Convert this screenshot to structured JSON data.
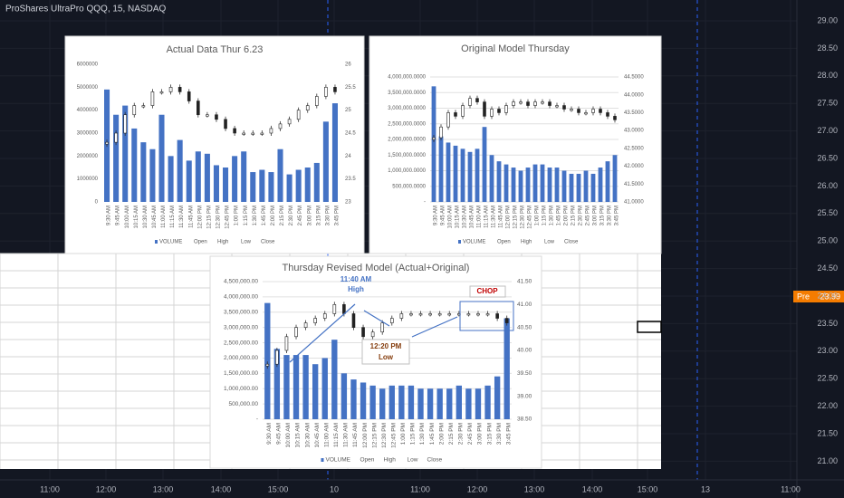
{
  "header": {
    "title": "ProShares UltraPro QQQ, 15, NASDAQ"
  },
  "price_axis": {
    "ticks": [
      "29.00",
      "28.50",
      "28.00",
      "27.50",
      "27.00",
      "26.50",
      "26.00",
      "25.50",
      "25.00",
      "24.50",
      "24.00",
      "23.50",
      "23.00",
      "22.50",
      "22.00",
      "21.50",
      "21.00"
    ],
    "marker_tag": "Pre",
    "marker_price": "23.99"
  },
  "time_axis": {
    "labels": [
      "11:00",
      "12:00",
      "13:00",
      "14:00",
      "15:00",
      "10",
      "11:00",
      "12:00",
      "13:00",
      "14:00",
      "15:00",
      "13",
      "11:00"
    ]
  },
  "charts": [
    {
      "title": "Actual Data Thur 6.23",
      "categories": [
        "9:30 AM",
        "9:45 AM",
        "10:00 AM",
        "10:15 AM",
        "10:30 AM",
        "10:45 AM",
        "11:00 AM",
        "11:15 AM",
        "11:30 AM",
        "11:45 AM",
        "12:00 PM",
        "12:15 PM",
        "12:30 PM",
        "12:45 PM",
        "1:00 PM",
        "1:15 PM",
        "1:30 PM",
        "1:45 PM",
        "2:00 PM",
        "2:15 PM",
        "2:30 PM",
        "2:45 PM",
        "3:00 PM",
        "3:15 PM",
        "3:30 PM",
        "3:45 PM"
      ],
      "volume": [
        4900000,
        3800000,
        4200000,
        3200000,
        2600000,
        2300000,
        3800000,
        2000000,
        2700000,
        1800000,
        2200000,
        2100000,
        1600000,
        1500000,
        2000000,
        2200000,
        1300000,
        1400000,
        1300000,
        2300000,
        1200000,
        1400000,
        1500000,
        1700000,
        3500000,
        4300000
      ],
      "close": [
        24.3,
        24.5,
        24.9,
        25.1,
        25.1,
        25.4,
        25.4,
        25.5,
        25.4,
        25.2,
        24.9,
        24.9,
        24.8,
        24.6,
        24.5,
        24.5,
        24.5,
        24.5,
        24.6,
        24.7,
        24.8,
        25.0,
        25.1,
        25.3,
        25.5,
        25.4
      ],
      "ylim": [
        0,
        6000000
      ],
      "yticks": [
        6000000,
        5000000,
        4000000,
        3000000,
        2000000,
        1000000,
        0
      ],
      "y2lim": [
        23,
        26
      ],
      "y2ticks": [
        26,
        25.5,
        25,
        24.5,
        24,
        23.5,
        23
      ],
      "legend": [
        "VOLUME",
        "Open",
        "High",
        "Low",
        "Close"
      ],
      "color": "#4472c4"
    },
    {
      "title": "Original Model Thursday",
      "categories": [
        "9:30 AM",
        "9:45 AM",
        "10:00 AM",
        "10:15 AM",
        "10:30 AM",
        "10:45 AM",
        "11:00 AM",
        "11:15 AM",
        "11:30 AM",
        "11:45 AM",
        "12:00 PM",
        "12:15 PM",
        "12:30 PM",
        "12:45 PM",
        "1:00 PM",
        "1:15 PM",
        "1:30 PM",
        "1:45 PM",
        "2:00 PM",
        "2:15 PM",
        "2:30 PM",
        "2:45 PM",
        "3:00 PM",
        "3:15 PM",
        "3:30 PM",
        "3:45 PM"
      ],
      "volume": [
        3700000,
        2100000,
        1900000,
        1800000,
        1700000,
        1600000,
        1700000,
        2400000,
        1500000,
        1300000,
        1200000,
        1100000,
        1000000,
        1100000,
        1200000,
        1200000,
        1100000,
        1100000,
        1000000,
        900000,
        900000,
        1000000,
        900000,
        1100000,
        1300000,
        1500000
      ],
      "close": [
        42.8,
        43.1,
        43.5,
        43.4,
        43.7,
        43.9,
        43.8,
        43.4,
        43.6,
        43.5,
        43.7,
        43.8,
        43.8,
        43.7,
        43.8,
        43.8,
        43.7,
        43.7,
        43.6,
        43.6,
        43.5,
        43.5,
        43.6,
        43.5,
        43.4,
        43.3
      ],
      "ylim": [
        0,
        4000000
      ],
      "yticks": [
        {
          "value": 4000000,
          "label": "4,000,000.0000"
        },
        {
          "value": 3500000,
          "label": "3,500,000.0000"
        },
        {
          "value": 3000000,
          "label": "3,000,000.0000"
        },
        {
          "value": 2500000,
          "label": "2,500,000.0000"
        },
        {
          "value": 2000000,
          "label": "2,000,000.0000"
        },
        {
          "value": 1500000,
          "label": "1,500,000.0000"
        },
        {
          "value": 1000000,
          "label": "1,000,000.0000"
        },
        {
          "value": 500000,
          "label": "500,000.0000"
        },
        {
          "value": 0,
          "label": "-"
        }
      ],
      "y2lim": [
        41,
        44.5
      ],
      "y2ticks": [
        {
          "value": 44.5,
          "label": "44.5000"
        },
        {
          "value": 44,
          "label": "44.0000"
        },
        {
          "value": 43.5,
          "label": "43.5000"
        },
        {
          "value": 43,
          "label": "43.0000"
        },
        {
          "value": 42.5,
          "label": "42.5000"
        },
        {
          "value": 42,
          "label": "42.0000"
        },
        {
          "value": 41.5,
          "label": "41.5000"
        },
        {
          "value": 41,
          "label": "41.0000"
        }
      ],
      "legend": [
        "VOLUME",
        "Open",
        "High",
        "Low",
        "Close"
      ],
      "color": "#4472c4"
    },
    {
      "title": "Thursday Revised Model (Actual+Original)",
      "categories": [
        "9:30 AM",
        "9:45 AM",
        "10:00 AM",
        "10:15 AM",
        "10:30 AM",
        "10:45 AM",
        "11:00 AM",
        "11:15 AM",
        "11:30 AM",
        "11:45 AM",
        "12:00 PM",
        "12:15 PM",
        "12:30 PM",
        "12:45 PM",
        "1:00 PM",
        "1:15 PM",
        "1:30 PM",
        "1:45 PM",
        "2:00 PM",
        "2:15 PM",
        "2:30 PM",
        "2:45 PM",
        "3:00 PM",
        "3:15 PM",
        "3:30 PM",
        "3:45 PM"
      ],
      "volume": [
        3800000,
        2300000,
        2100000,
        2100000,
        2100000,
        1800000,
        2000000,
        2600000,
        1500000,
        1300000,
        1200000,
        1100000,
        1000000,
        1100000,
        1100000,
        1100000,
        1000000,
        1000000,
        1000000,
        1000000,
        1100000,
        1000000,
        1000000,
        1100000,
        1400000,
        3300000
      ],
      "close": [
        39.7,
        40.0,
        40.3,
        40.5,
        40.6,
        40.7,
        40.8,
        41.0,
        40.8,
        40.5,
        40.3,
        40.4,
        40.6,
        40.7,
        40.8,
        40.8,
        40.8,
        40.8,
        40.8,
        40.8,
        40.8,
        40.8,
        40.8,
        40.8,
        40.7,
        40.6
      ],
      "ylim": [
        0,
        4500000
      ],
      "yticks": [
        {
          "value": 4500000,
          "label": "4,500,000.00"
        },
        {
          "value": 4000000,
          "label": "4,000,000.00"
        },
        {
          "value": 3500000,
          "label": "3,500,000.00"
        },
        {
          "value": 3000000,
          "label": "3,000,000.00"
        },
        {
          "value": 2500000,
          "label": "2,500,000.00"
        },
        {
          "value": 2000000,
          "label": "2,000,000.00"
        },
        {
          "value": 1500000,
          "label": "1,500,000.00"
        },
        {
          "value": 1000000,
          "label": "1,000,000.00"
        },
        {
          "value": 500000,
          "label": "500,000.00"
        },
        {
          "value": 0,
          "label": "-"
        }
      ],
      "y2lim": [
        38.5,
        41.5
      ],
      "y2ticks": [
        {
          "value": 41.5,
          "label": "41.50"
        },
        {
          "value": 41,
          "label": "41.00"
        },
        {
          "value": 40.5,
          "label": "40.50"
        },
        {
          "value": 40,
          "label": "40.00"
        },
        {
          "value": 39.5,
          "label": "39.50"
        },
        {
          "value": 39,
          "label": "39.00"
        },
        {
          "value": 38.5,
          "label": "38.50"
        }
      ],
      "legend": [
        "VOLUME",
        "Open",
        "High",
        "Low",
        "Close"
      ],
      "color": "#4472c4",
      "annotations": {
        "high_time": "11:40 AM",
        "high": "High",
        "low_time": "12:20 PM",
        "low": "Low",
        "chop": "CHOP"
      }
    }
  ]
}
